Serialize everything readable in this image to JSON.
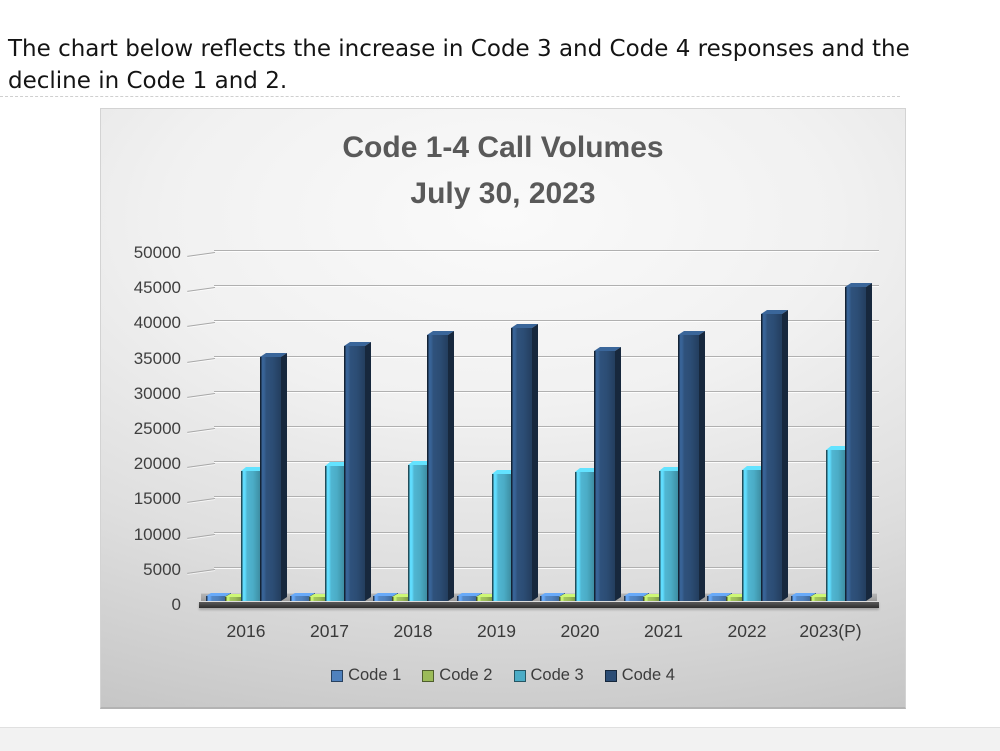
{
  "page": {
    "intro_text": "The chart below reflects the increase in Code 3 and Code 4 responses and the decline in Code 1 and 2."
  },
  "chart_data": {
    "type": "bar",
    "style": "3d-clustered-column",
    "title": "Code 1-4 Call Volumes",
    "subtitle": "July 30, 2023",
    "categories": [
      "2016",
      "2017",
      "2018",
      "2019",
      "2020",
      "2021",
      "2022",
      "2023(P)"
    ],
    "series": [
      {
        "name": "Code 1",
        "color": "#4f81bd",
        "values": [
          700,
          700,
          700,
          700,
          700,
          700,
          700,
          700
        ]
      },
      {
        "name": "Code 2",
        "color": "#9bbb59",
        "values": [
          600,
          600,
          600,
          600,
          600,
          600,
          600,
          600
        ]
      },
      {
        "name": "Code 3",
        "color": "#4bacc6",
        "values": [
          18800,
          19500,
          19600,
          18300,
          18600,
          18700,
          18900,
          21700
        ]
      },
      {
        "name": "Code 4",
        "color": "#2c4d75",
        "values": [
          35200,
          36700,
          38400,
          39400,
          36000,
          38400,
          41300,
          45200
        ]
      }
    ],
    "ylim": [
      0,
      50000
    ],
    "ytick_step": 5000,
    "grid": true,
    "legend_position": "bottom"
  }
}
